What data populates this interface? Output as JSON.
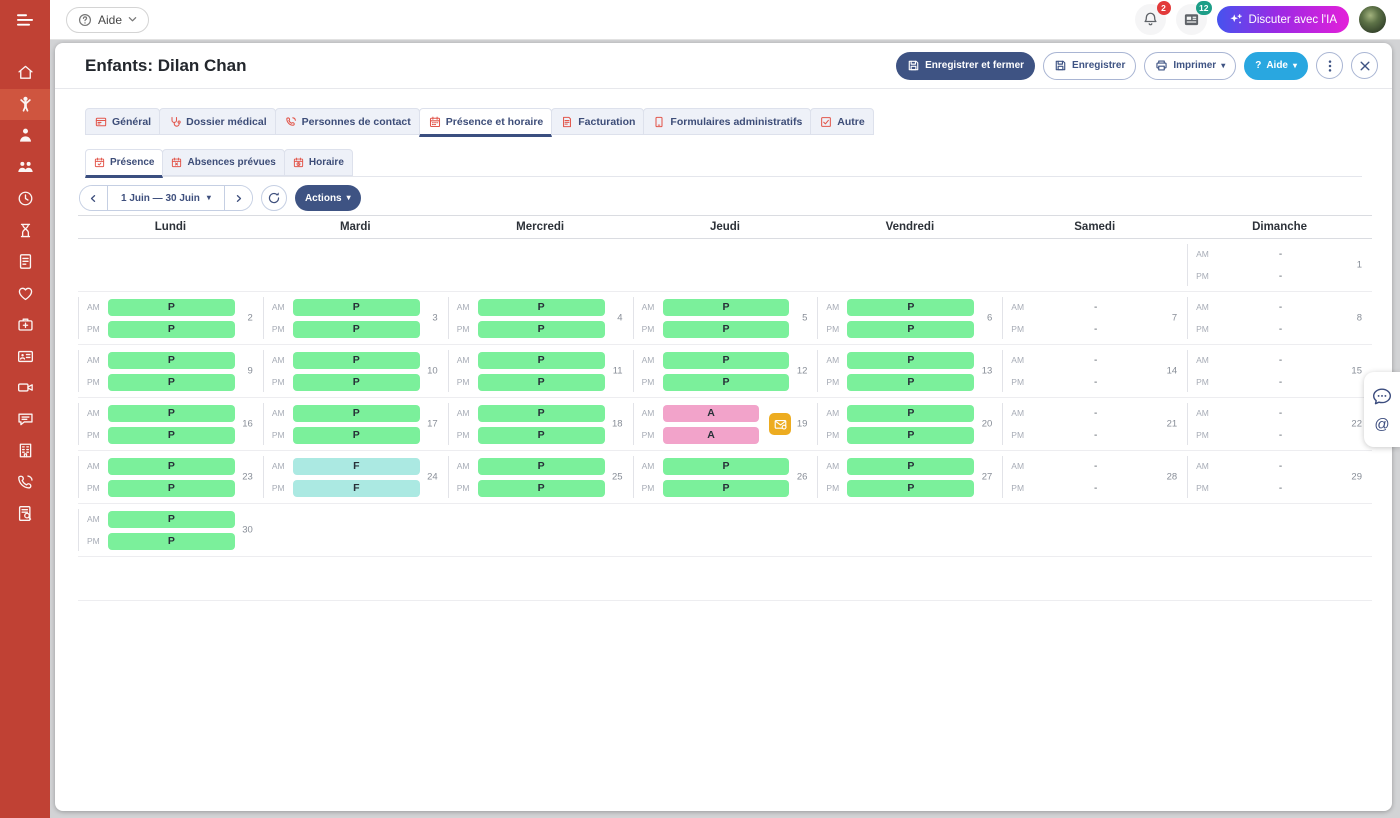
{
  "sidebar": {
    "items": [
      {
        "id": "home",
        "icon": "home-icon",
        "active": false
      },
      {
        "id": "children",
        "icon": "child-icon",
        "active": true
      },
      {
        "id": "staff",
        "icon": "parent-icon",
        "active": false
      },
      {
        "id": "groups",
        "icon": "people-icon",
        "active": false
      },
      {
        "id": "hours",
        "icon": "clock-icon",
        "active": false
      },
      {
        "id": "waitlist",
        "icon": "hourglass-icon",
        "active": false
      },
      {
        "id": "billing",
        "icon": "invoice-icon",
        "active": false
      },
      {
        "id": "health",
        "icon": "heart-icon",
        "active": false
      },
      {
        "id": "medical",
        "icon": "medical-bag-icon",
        "active": false
      },
      {
        "id": "idcards",
        "icon": "id-card-icon",
        "active": false
      },
      {
        "id": "video",
        "icon": "video-camera-icon",
        "active": false
      },
      {
        "id": "messages",
        "icon": "chat-icon",
        "active": false
      },
      {
        "id": "facility",
        "icon": "building-icon",
        "active": false
      },
      {
        "id": "calls",
        "icon": "phone-icon",
        "active": false
      },
      {
        "id": "reports",
        "icon": "document-search-icon",
        "active": false
      }
    ]
  },
  "topbar": {
    "help_label": "Aide",
    "notifications_count": "2",
    "messages_count": "12",
    "ai_button_label": "Discuter avec l'IA"
  },
  "header": {
    "title": "Enfants: Dilan Chan",
    "save_close_label": "Enregistrer et fermer",
    "save_label": "Enregistrer",
    "print_label": "Imprimer",
    "help_label": "Aide",
    "help_prefix": "?"
  },
  "tabs": [
    {
      "id": "general",
      "label": "Général",
      "icon": "card",
      "active": false
    },
    {
      "id": "dossier-medical",
      "label": "Dossier médical",
      "icon": "stethoscope",
      "active": false
    },
    {
      "id": "personnes-de-contact",
      "label": "Personnes de contact",
      "icon": "phone-contact",
      "active": false
    },
    {
      "id": "presence-et-horaire",
      "label": "Présence et horaire",
      "icon": "calendar-grid",
      "active": true
    },
    {
      "id": "facturation",
      "label": "Facturation",
      "icon": "invoice-doc",
      "active": false
    },
    {
      "id": "formulaires-administratifs",
      "label": "Formulaires administratifs",
      "icon": "form",
      "active": false
    },
    {
      "id": "autre",
      "label": "Autre",
      "icon": "check-square",
      "active": false
    }
  ],
  "subtabs": [
    {
      "id": "presence",
      "label": "Présence",
      "icon": "calendar-check",
      "active": true
    },
    {
      "id": "absences-prevues",
      "label": "Absences prévues",
      "icon": "calendar-x",
      "active": false
    },
    {
      "id": "horaire",
      "label": "Horaire",
      "icon": "calendar-clock",
      "active": false
    }
  ],
  "datenav": {
    "range_label": "1 Juin — 30 Juin",
    "actions_label": "Actions"
  },
  "calendar": {
    "day_headers": [
      "Lundi",
      "Mardi",
      "Mercredi",
      "Jeudi",
      "Vendredi",
      "Samedi",
      "Dimanche"
    ],
    "am_label": "AM",
    "pm_label": "PM",
    "weeks": [
      [
        null,
        null,
        null,
        null,
        null,
        null,
        {
          "day": 1,
          "am": "-",
          "pm": "-"
        }
      ],
      [
        {
          "day": 2,
          "am": "P",
          "pm": "P"
        },
        {
          "day": 3,
          "am": "P",
          "pm": "P"
        },
        {
          "day": 4,
          "am": "P",
          "pm": "P"
        },
        {
          "day": 5,
          "am": "P",
          "pm": "P"
        },
        {
          "day": 6,
          "am": "P",
          "pm": "P"
        },
        {
          "day": 7,
          "am": "-",
          "pm": "-"
        },
        {
          "day": 8,
          "am": "-",
          "pm": "-"
        }
      ],
      [
        {
          "day": 9,
          "am": "P",
          "pm": "P"
        },
        {
          "day": 10,
          "am": "P",
          "pm": "P"
        },
        {
          "day": 11,
          "am": "P",
          "pm": "P"
        },
        {
          "day": 12,
          "am": "P",
          "pm": "P"
        },
        {
          "day": 13,
          "am": "P",
          "pm": "P"
        },
        {
          "day": 14,
          "am": "-",
          "pm": "-"
        },
        {
          "day": 15,
          "am": "-",
          "pm": "-"
        }
      ],
      [
        {
          "day": 16,
          "am": "P",
          "pm": "P"
        },
        {
          "day": 17,
          "am": "P",
          "pm": "P"
        },
        {
          "day": 18,
          "am": "P",
          "pm": "P"
        },
        {
          "day": 19,
          "am": "A",
          "pm": "A",
          "badge": "envelope"
        },
        {
          "day": 20,
          "am": "P",
          "pm": "P"
        },
        {
          "day": 21,
          "am": "-",
          "pm": "-"
        },
        {
          "day": 22,
          "am": "-",
          "pm": "-"
        }
      ],
      [
        {
          "day": 23,
          "am": "P",
          "pm": "P"
        },
        {
          "day": 24,
          "am": "F",
          "pm": "F"
        },
        {
          "day": 25,
          "am": "P",
          "pm": "P"
        },
        {
          "day": 26,
          "am": "P",
          "pm": "P"
        },
        {
          "day": 27,
          "am": "P",
          "pm": "P"
        },
        {
          "day": 28,
          "am": "-",
          "pm": "-"
        },
        {
          "day": 29,
          "am": "-",
          "pm": "-"
        }
      ],
      [
        {
          "day": 30,
          "am": "P",
          "pm": "P"
        },
        null,
        null,
        null,
        null,
        null,
        null
      ]
    ],
    "status_colors": {
      "P": "#7bf09b",
      "A": "#f2a3ca",
      "F": "#abe9e2"
    }
  },
  "colors": {
    "sidebar": "#c04134",
    "sidebar_active": "#d05740",
    "primary_navy": "#3e5383",
    "help_blue": "#29a7e0",
    "ai_gradient_from": "#4653ee",
    "ai_gradient_to": "#e320d9",
    "notification_red": "#e23a3a",
    "message_teal": "#1d9e88",
    "mail_badge_yellow": "#edac20"
  }
}
